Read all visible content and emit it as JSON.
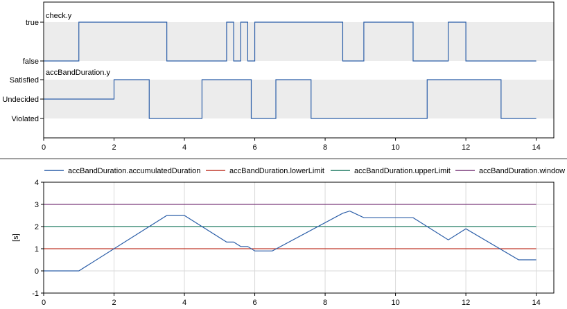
{
  "colors": {
    "series_blue": "#2b5ea8",
    "series_red": "#c0392b",
    "series_green": "#1f7a62",
    "series_purple": "#7a3a7a",
    "band_gray": "#ececec",
    "frame": "#000000",
    "grid": "#d9d9d9",
    "splitter": "#a0a0a0"
  },
  "chart_data": [
    {
      "type": "line",
      "title": "check.y",
      "xlim": [
        0,
        14.5
      ],
      "xticks": [
        0,
        2,
        4,
        6,
        8,
        10,
        12,
        14
      ],
      "y_categories": [
        "false",
        "true"
      ],
      "shaded_band": true,
      "series": [
        {
          "name": "check.y",
          "step": true,
          "x": [
            0,
            1,
            3.5,
            5.2,
            5.4,
            5.6,
            5.8,
            6.0,
            8.5,
            9.1,
            10.5,
            11.5,
            12.0,
            14
          ],
          "y": [
            0,
            1,
            0,
            1,
            0,
            1,
            0,
            1,
            0,
            1,
            0,
            1,
            0,
            0
          ]
        }
      ]
    },
    {
      "type": "line",
      "title": "accBandDuration.y",
      "xlim": [
        0,
        14.5
      ],
      "xticks": [
        0,
        2,
        4,
        6,
        8,
        10,
        12,
        14
      ],
      "y_categories": [
        "Violated",
        "Undecided",
        "Satisfied"
      ],
      "shaded_band": true,
      "series": [
        {
          "name": "accBandDuration.y",
          "step": true,
          "x": [
            0,
            2,
            3,
            4.5,
            5.9,
            6.6,
            7.6,
            10.9,
            13.0,
            14
          ],
          "y": [
            1,
            2,
            0,
            2,
            0,
            2,
            0,
            2,
            0,
            0
          ]
        }
      ]
    },
    {
      "type": "line",
      "ylabel": "[s]",
      "xlim": [
        0,
        14.5
      ],
      "ylim": [
        -1,
        4
      ],
      "xticks": [
        0,
        2,
        4,
        6,
        8,
        10,
        12,
        14
      ],
      "yticks": [
        -1,
        0,
        1,
        2,
        3,
        4
      ],
      "grid": true,
      "legend": "top",
      "series": [
        {
          "name": "accBandDuration.accumulatedDuration",
          "color": "#2b5ea8",
          "x": [
            0,
            1,
            3.5,
            4.0,
            5.2,
            5.4,
            5.6,
            5.8,
            6.0,
            6.5,
            8.5,
            8.7,
            9.1,
            10.5,
            11.5,
            12.0,
            13.5,
            14
          ],
          "y": [
            0,
            0,
            2.5,
            2.5,
            1.3,
            1.3,
            1.1,
            1.1,
            0.9,
            0.9,
            2.6,
            2.7,
            2.4,
            2.4,
            1.4,
            1.9,
            0.5,
            0.5
          ]
        },
        {
          "name": "accBandDuration.lowerLimit",
          "color": "#c0392b",
          "x": [
            0,
            14
          ],
          "y": [
            1,
            1
          ]
        },
        {
          "name": "accBandDuration.upperLimit",
          "color": "#1f7a62",
          "x": [
            0,
            14
          ],
          "y": [
            2,
            2
          ]
        },
        {
          "name": "accBandDuration.window",
          "color": "#7a3a7a",
          "x": [
            0,
            14
          ],
          "y": [
            3,
            3
          ]
        }
      ]
    }
  ]
}
